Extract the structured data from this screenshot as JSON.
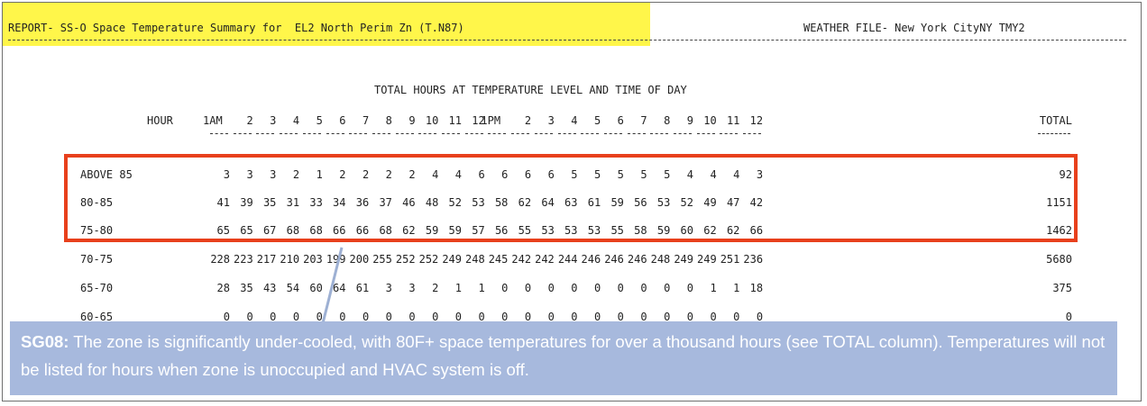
{
  "report": {
    "title": "REPORT- SS-O Space Temperature Summary for  EL2 North Perim Zn (T.N87)",
    "weather_file": "WEATHER FILE- New York CityNY TMY2"
  },
  "table": {
    "section_title": "TOTAL HOURS AT TEMPERATURE LEVEL AND TIME OF DAY",
    "hour_label": "HOUR",
    "hours": [
      "1AM",
      "2",
      "3",
      "4",
      "5",
      "6",
      "7",
      "8",
      "9",
      "10",
      "11",
      "12",
      "1PM",
      "2",
      "3",
      "4",
      "5",
      "6",
      "7",
      "8",
      "9",
      "10",
      "11",
      "12"
    ],
    "total_label": "TOTAL",
    "rows": [
      {
        "label": "ABOVE 85",
        "values": [
          "3",
          "3",
          "3",
          "2",
          "1",
          "2",
          "2",
          "2",
          "2",
          "4",
          "4",
          "6",
          "6",
          "6",
          "6",
          "5",
          "5",
          "5",
          "5",
          "5",
          "4",
          "4",
          "4",
          "3"
        ],
        "total": "92"
      },
      {
        "label": "80-85",
        "values": [
          "41",
          "39",
          "35",
          "31",
          "33",
          "34",
          "36",
          "37",
          "46",
          "48",
          "52",
          "53",
          "58",
          "62",
          "64",
          "63",
          "61",
          "59",
          "56",
          "53",
          "52",
          "49",
          "47",
          "42"
        ],
        "total": "1151"
      },
      {
        "label": "75-80",
        "values": [
          "65",
          "65",
          "67",
          "68",
          "68",
          "66",
          "66",
          "68",
          "62",
          "59",
          "59",
          "57",
          "56",
          "55",
          "53",
          "53",
          "53",
          "55",
          "58",
          "59",
          "60",
          "62",
          "62",
          "66"
        ],
        "total": "1462"
      },
      {
        "label": "70-75",
        "values": [
          "228",
          "223",
          "217",
          "210",
          "203",
          "199",
          "200",
          "255",
          "252",
          "252",
          "249",
          "248",
          "245",
          "242",
          "242",
          "244",
          "246",
          "246",
          "246",
          "248",
          "249",
          "249",
          "251",
          "236"
        ],
        "total": "5680"
      },
      {
        "label": "65-70",
        "values": [
          "28",
          "35",
          "43",
          "54",
          "60",
          "64",
          "61",
          "3",
          "3",
          "2",
          "1",
          "1",
          "0",
          "0",
          "0",
          "0",
          "0",
          "0",
          "0",
          "0",
          "0",
          "1",
          "1",
          "18"
        ],
        "total": "375"
      },
      {
        "label": "60-65",
        "values": [
          "0",
          "0",
          "0",
          "0",
          "0",
          "0",
          "0",
          "0",
          "0",
          "0",
          "0",
          "0",
          "0",
          "0",
          "0",
          "0",
          "0",
          "0",
          "0",
          "0",
          "0",
          "0",
          "0",
          "0"
        ],
        "total": "0"
      }
    ]
  },
  "callout": {
    "tag": "SG08:",
    "text": " The zone is significantly under-cooled, with 80F+ space temperatures for over a thousand hours (see TOTAL column). Temperatures will not be listed for hours when zone is unoccupied and HVAC system is off."
  },
  "colors": {
    "title_highlight": "#fff64a",
    "box_border": "#e8401c",
    "callout_bg": "#a7b9dd"
  }
}
